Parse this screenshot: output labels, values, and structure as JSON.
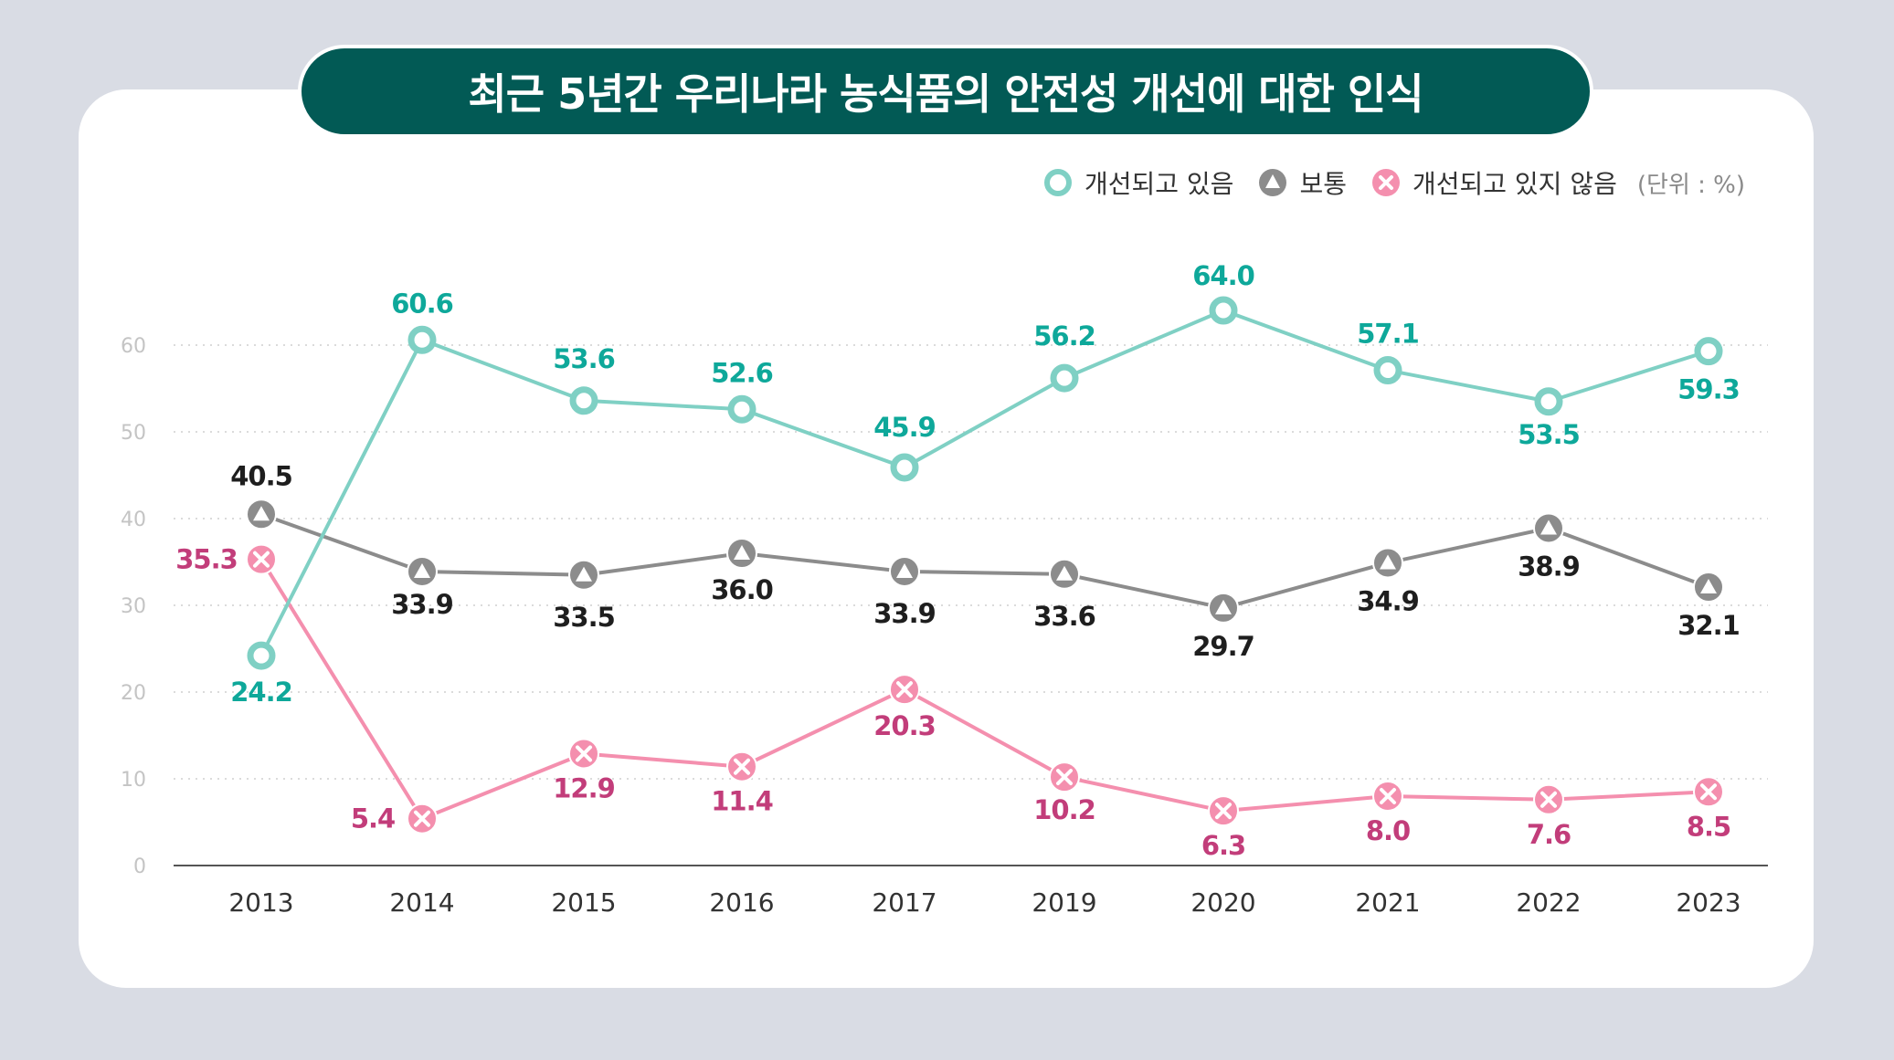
{
  "title": "최근 5년간 우리나라 농식품의 안전성 개선에 대한 인식",
  "legend": {
    "improving": "개선되고 있음",
    "normal": "보통",
    "not_improving": "개선되고 있지 않음",
    "unit": "(단위 : %)"
  },
  "colors": {
    "background": "#d9dce4",
    "title_bg": "#025a55",
    "improving_line": "#7fd0c4",
    "improving_label": "#0ea89a",
    "normal_line": "#8c8c8c",
    "normal_label": "#1e1e1e",
    "not_improving_line": "#f48fae",
    "not_improving_label": "#c23d7a",
    "grid": "#cfcfcf",
    "axis": "#555555"
  },
  "chart_data": {
    "type": "line",
    "categories": [
      "2013",
      "2014",
      "2015",
      "2016",
      "2017",
      "2019",
      "2020",
      "2021",
      "2022",
      "2023"
    ],
    "ylim": [
      0,
      70
    ],
    "yticks": [
      0,
      10,
      20,
      30,
      40,
      50,
      60
    ],
    "grid": true,
    "legend_position": "top-right",
    "series": [
      {
        "key": "improving",
        "name": "개선되고 있음",
        "marker": "circle",
        "values": [
          24.2,
          60.6,
          53.6,
          52.6,
          45.9,
          56.2,
          64.0,
          57.1,
          53.5,
          59.3
        ],
        "labels": [
          "24.2",
          "60.6",
          "53.6",
          "52.6",
          "45.9",
          "56.2",
          "64.0",
          "57.1",
          "53.5",
          "59.3"
        ]
      },
      {
        "key": "normal",
        "name": "보통",
        "marker": "triangle",
        "values": [
          40.5,
          33.9,
          33.5,
          36.0,
          33.9,
          33.6,
          29.7,
          34.9,
          38.9,
          32.1
        ],
        "labels": [
          "40.5",
          "33.9",
          "33.5",
          "36.0",
          "33.9",
          "33.6",
          "29.7",
          "34.9",
          "38.9",
          "32.1"
        ]
      },
      {
        "key": "not_improving",
        "name": "개선되고 있지 않음",
        "marker": "x",
        "values": [
          35.3,
          5.4,
          12.9,
          11.4,
          20.3,
          10.2,
          6.3,
          8.0,
          7.6,
          8.5
        ],
        "labels": [
          "35.3",
          "5.4",
          "12.9",
          "11.4",
          "20.3",
          "10.2",
          "6.3",
          "8.0",
          "7.6",
          "8.5"
        ]
      }
    ]
  }
}
